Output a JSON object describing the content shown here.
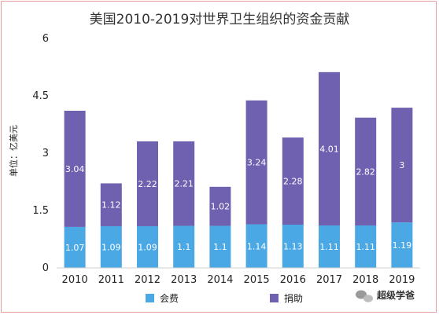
{
  "chart_data": {
    "type": "bar",
    "stacked": true,
    "title": "美国2010-2019对世界卫生组织的资金贡献",
    "ylabel": "单位：亿美元",
    "xlabel": "",
    "ylim": [
      0,
      6
    ],
    "yticks": [
      0,
      1.5,
      3,
      4.5,
      6
    ],
    "ytick_labels": [
      "0",
      "1.5",
      "3",
      "4.5",
      "6"
    ],
    "grid": false,
    "legend": "bottom",
    "categories": [
      "2010",
      "2011",
      "2012",
      "2013",
      "2014",
      "2015",
      "2016",
      "2017",
      "2018",
      "2019"
    ],
    "series": [
      {
        "name": "会费",
        "color": "#4aa8e4",
        "values": [
          1.07,
          1.09,
          1.09,
          1.1,
          1.1,
          1.14,
          1.13,
          1.11,
          1.11,
          1.19
        ],
        "labels": [
          "1.07",
          "1.09",
          "1.09",
          "1.1",
          "1.1",
          "1.14",
          "1.13",
          "1.11",
          "1.11",
          "1.19"
        ]
      },
      {
        "name": "捐助",
        "color": "#7060b0",
        "values": [
          3.04,
          1.12,
          2.22,
          2.21,
          1.02,
          3.24,
          2.28,
          4.01,
          2.82,
          3
        ],
        "labels": [
          "3.04",
          "1.12",
          "2.22",
          "2.21",
          "1.02",
          "3.24",
          "2.28",
          "4.01",
          "2.82",
          "3"
        ]
      }
    ]
  },
  "watermark": {
    "text": "超级学爸"
  }
}
